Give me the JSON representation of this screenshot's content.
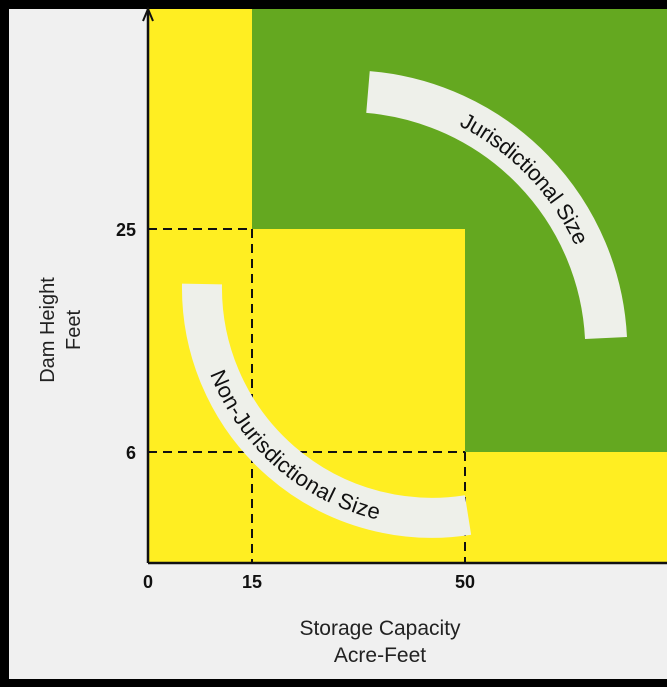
{
  "chart_data": {
    "type": "region-diagram",
    "xlabel_lines": [
      "Storage Capacity",
      "Acre-Feet"
    ],
    "ylabel_lines": [
      "Dam Height",
      "Feet"
    ],
    "x_ticks": [
      {
        "value": 0,
        "label": "0"
      },
      {
        "value": 15,
        "label": "15"
      },
      {
        "value": 50,
        "label": "50"
      }
    ],
    "y_ticks": [
      {
        "value": 6,
        "label": "6"
      },
      {
        "value": 25,
        "label": "25"
      }
    ],
    "regions": [
      {
        "name": "Jurisdictional Size",
        "label": "Jurisdictional Size",
        "color": "#64a820",
        "rule": "height >= 25 ft and storage >= 15 acre-ft, or height >= 6 ft and storage >= 50 acre-ft"
      },
      {
        "name": "Non-Jurisdictional Size",
        "label": "Non-Jurisdictional Size",
        "color": "#ffee22",
        "rule": "height < 25 ft or storage < 15 acre-ft, and height < 6 ft or storage < 50 acre-ft"
      }
    ],
    "dashed_lines": [
      {
        "axis": "x",
        "value": 15
      },
      {
        "axis": "x",
        "value": 50
      },
      {
        "axis": "y",
        "value": 6
      },
      {
        "axis": "y",
        "value": 25
      }
    ]
  },
  "colors": {
    "background": "#f0f0f0",
    "frame": "#000000",
    "yellow": "#ffee22",
    "green": "#64a820",
    "band": "#eef0ea",
    "axis": "#111111"
  }
}
